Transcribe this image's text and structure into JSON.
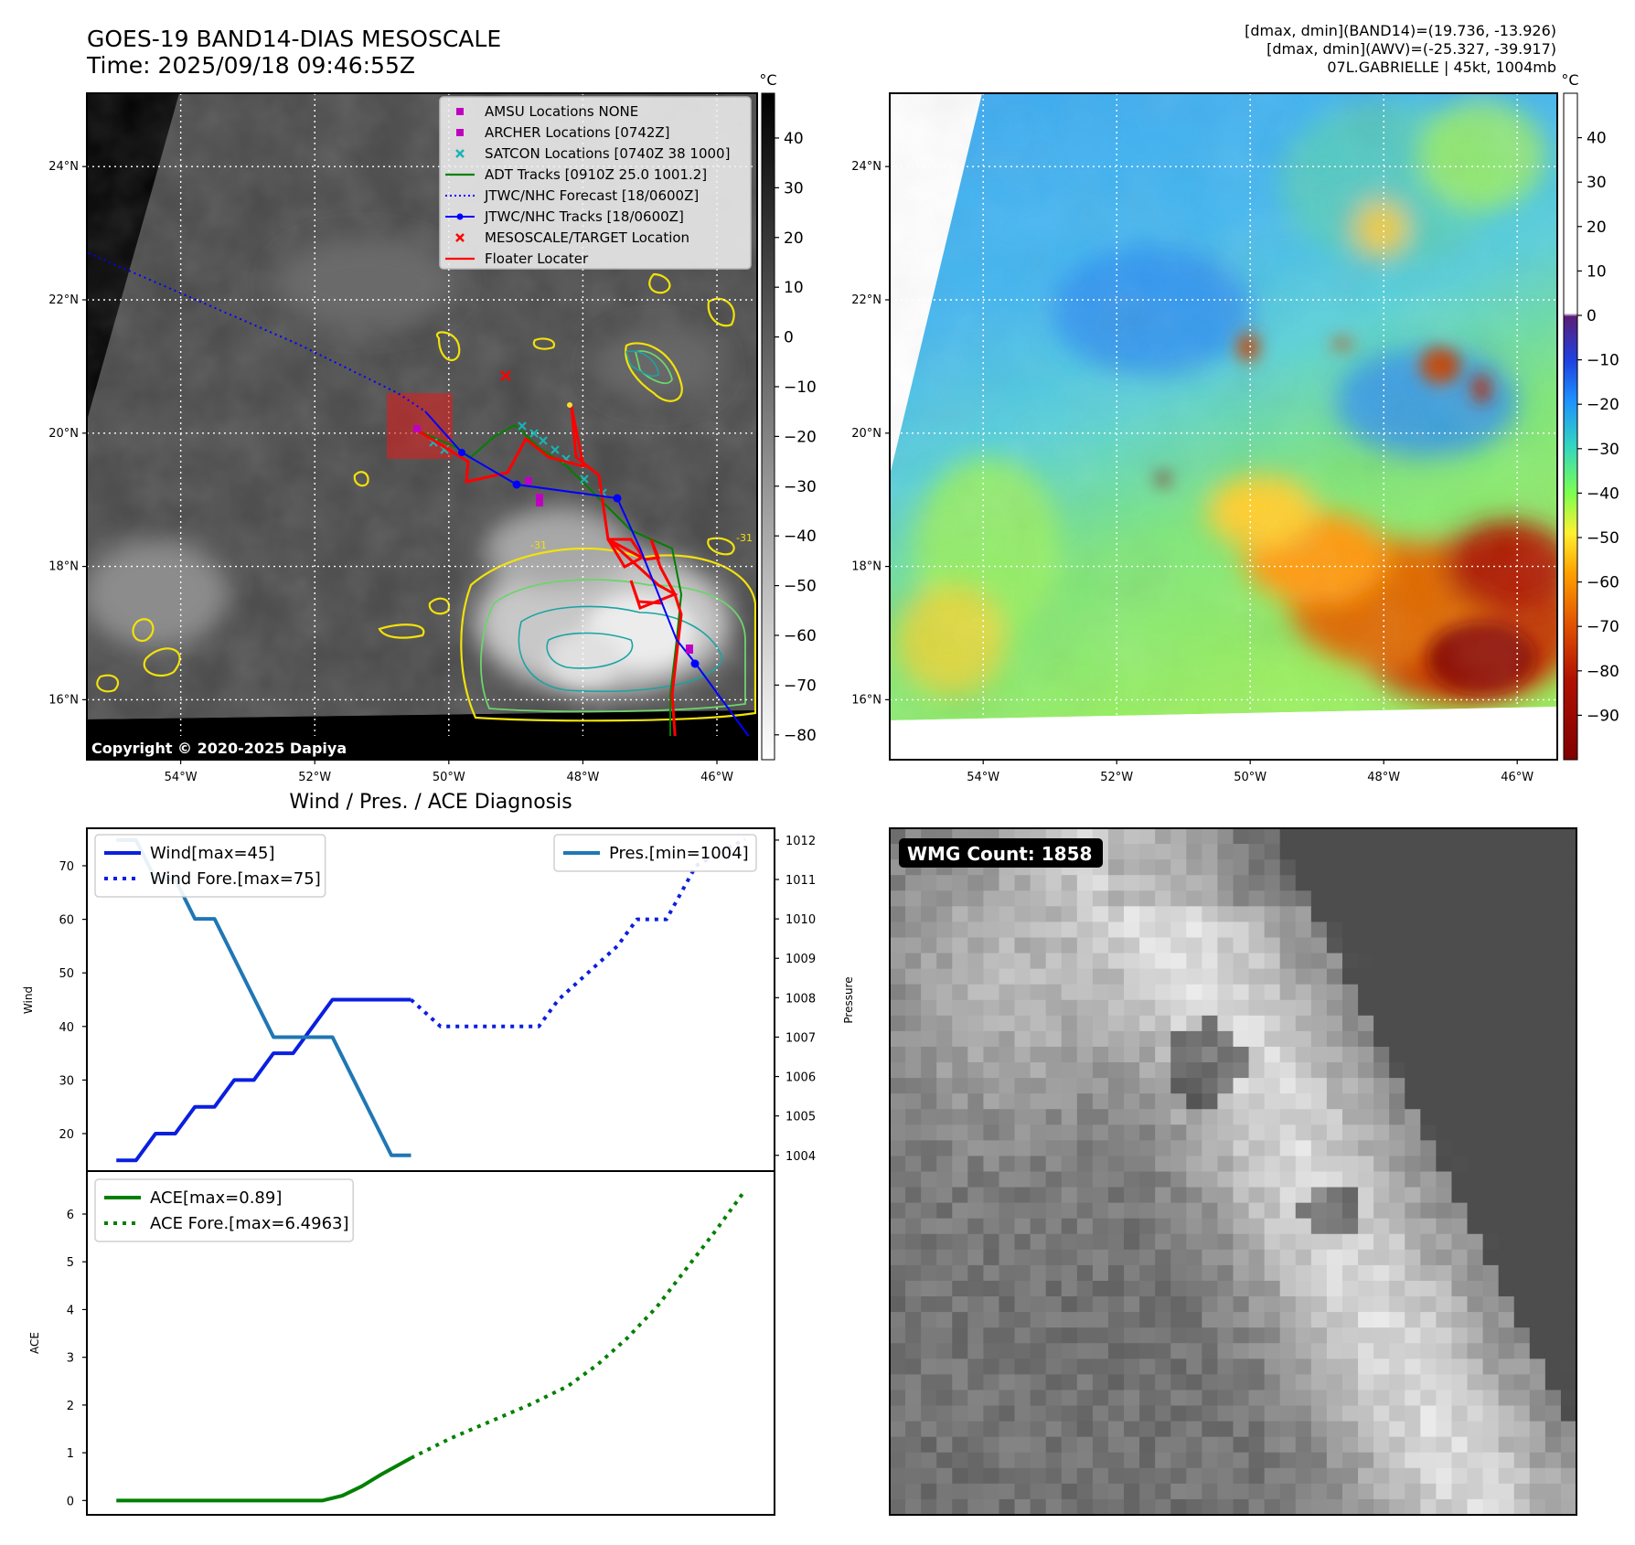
{
  "header": {
    "title": "GOES-19 BAND14-DIAS MESOSCALE",
    "time": "Time: 2025/09/18 09:46:55Z",
    "stats_band14": "[dmax, dmin](BAND14)=(19.736, -13.926)",
    "stats_awv": "[dmax, dmin](AWV)=(-25.327, -39.917)",
    "storm": "07L.GABRIELLE | 45kt, 1004mb"
  },
  "map_panels": {
    "lat_ticks": [
      "24°N",
      "22°N",
      "20°N",
      "18°N",
      "16°N"
    ],
    "lon_ticks": [
      "54°W",
      "52°W",
      "50°W",
      "48°W",
      "46°W"
    ],
    "lat_values": [
      24,
      22,
      20,
      18,
      16
    ],
    "lon_values": [
      -54,
      -52,
      -50,
      -48,
      -46
    ],
    "extent": {
      "lon_min": -55.4,
      "lon_max": -45.4,
      "lat_min": 15.1,
      "lat_max": 25.1
    },
    "copyright": "Copyright © 2020-2025 Dapiya",
    "colorbar_unit": "°C",
    "ir_colorbar_ticks": [
      "40",
      "30",
      "20",
      "10",
      "0",
      "−10",
      "−20",
      "−30",
      "−40",
      "−50",
      "−60",
      "−70",
      "−80"
    ],
    "ir_colorbar_range": [
      49,
      -85
    ],
    "awv_colorbar_ticks": [
      "40",
      "30",
      "20",
      "10",
      "0",
      "−10",
      "−20",
      "−30",
      "−40",
      "−50",
      "−60",
      "−70",
      "−80",
      "−90"
    ],
    "awv_colorbar_range": [
      50,
      -100
    ],
    "legend": [
      {
        "label": "AMSU Locations NONE",
        "marker": "square",
        "color": "#c000c0"
      },
      {
        "label": "ARCHER Locations [0742Z]",
        "marker": "square",
        "color": "#c000c0"
      },
      {
        "label": "SATCON Locations [0740Z 38 1000]",
        "marker": "x",
        "color": "#19b4b4"
      },
      {
        "label": "ADT Tracks [0910Z 25.0 1001.2]",
        "marker": "line",
        "color": "#008000"
      },
      {
        "label": "JTWC/NHC Forecast [18/0600Z]",
        "marker": "dotted",
        "color": "#0000ff"
      },
      {
        "label": "JTWC/NHC Tracks [18/0600Z]",
        "marker": "line-dot",
        "color": "#0000ff"
      },
      {
        "label": "MESOSCALE/TARGET Location",
        "marker": "x",
        "color": "#ff0000"
      },
      {
        "label": "Floater Locater",
        "marker": "line",
        "color": "#ff0000"
      }
    ],
    "contour_label": "-31"
  },
  "diagnosis": {
    "title": "Wind / Pres. / ACE Diagnosis"
  },
  "wmg": {
    "label": "WMG Count: 1858"
  },
  "chart_data": [
    {
      "type": "line",
      "name": "wind_pressure",
      "ylabel": "Wind",
      "y2label": "Pressure",
      "ylim": [
        13,
        77
      ],
      "y2lim": [
        1003.6,
        1012.3
      ],
      "xlim": [
        0,
        35
      ],
      "yticks": [
        20,
        30,
        40,
        50,
        60,
        70
      ],
      "y2ticks": [
        1004,
        1005,
        1006,
        1007,
        1008,
        1009,
        1010,
        1011,
        1012
      ],
      "legend_left": [
        "Wind[max=45]",
        "Wind Fore.[max=75]"
      ],
      "legend_right": [
        "Pres.[min=1004]"
      ],
      "series": [
        {
          "name": "Wind[max=45]",
          "axis": "left",
          "style": "solid",
          "color": "#0a1fe0",
          "x": [
            1.5,
            2.5,
            3.5,
            4.5,
            5.5,
            6.5,
            7.5,
            8.5,
            9.5,
            10.5,
            11.5,
            12.5,
            13.5,
            14.5,
            15.5,
            16.5
          ],
          "y": [
            15,
            15,
            20,
            20,
            25,
            25,
            30,
            30,
            35,
            35,
            40,
            45,
            45,
            45,
            45,
            45
          ]
        },
        {
          "name": "Wind Fore.[max=75]",
          "axis": "left",
          "style": "dotted",
          "color": "#0a1fe0",
          "x": [
            16.5,
            18,
            19.5,
            23,
            24,
            25.5,
            27,
            28,
            29.5,
            31,
            33.5
          ],
          "y": [
            45,
            40,
            40,
            40,
            45,
            50,
            55,
            60,
            60,
            70,
            75
          ]
        },
        {
          "name": "Pres.[min=1004]",
          "axis": "right",
          "style": "solid",
          "color": "#1f77b4",
          "x": [
            1.5,
            2.5,
            3.5,
            4.5,
            5.5,
            6.5,
            7.5,
            8.5,
            9.5,
            10.5,
            11.5,
            12.5,
            13.5,
            14.5,
            15.5,
            16.5
          ],
          "y": [
            1012,
            1012,
            1011,
            1011,
            1010,
            1010,
            1009,
            1008,
            1007,
            1007,
            1007,
            1007,
            1006,
            1005,
            1004,
            1004
          ]
        }
      ]
    },
    {
      "type": "line",
      "name": "ace",
      "ylabel": "ACE",
      "ylim": [
        -0.3,
        6.9
      ],
      "xlim": [
        0,
        35
      ],
      "yticks": [
        0,
        1,
        2,
        3,
        4,
        5,
        6
      ],
      "legend": [
        "ACE[max=0.89]",
        "ACE Fore.[max=6.4963]"
      ],
      "series": [
        {
          "name": "ACE[max=0.89]",
          "style": "solid",
          "color": "#008000",
          "x": [
            1.5,
            4,
            7,
            10,
            12,
            13,
            14,
            15,
            16.5
          ],
          "y": [
            0,
            0,
            0,
            0,
            0,
            0.1,
            0.3,
            0.55,
            0.89
          ]
        },
        {
          "name": "ACE Fore.[max=6.4963]",
          "style": "dotted",
          "color": "#008000",
          "x": [
            16.5,
            18.5,
            20.5,
            22.5,
            24.5,
            26,
            27.5,
            29,
            30.5,
            32,
            33.5
          ],
          "y": [
            0.89,
            1.3,
            1.65,
            2.0,
            2.4,
            2.85,
            3.4,
            4.05,
            4.85,
            5.65,
            6.4963
          ]
        }
      ]
    }
  ],
  "colors": {
    "wind": "#0a1fe0",
    "pressure": "#1f77b4",
    "ace": "#008000",
    "floater": "#ff0000",
    "adt": "#008000",
    "jtwc": "#0000ff"
  }
}
